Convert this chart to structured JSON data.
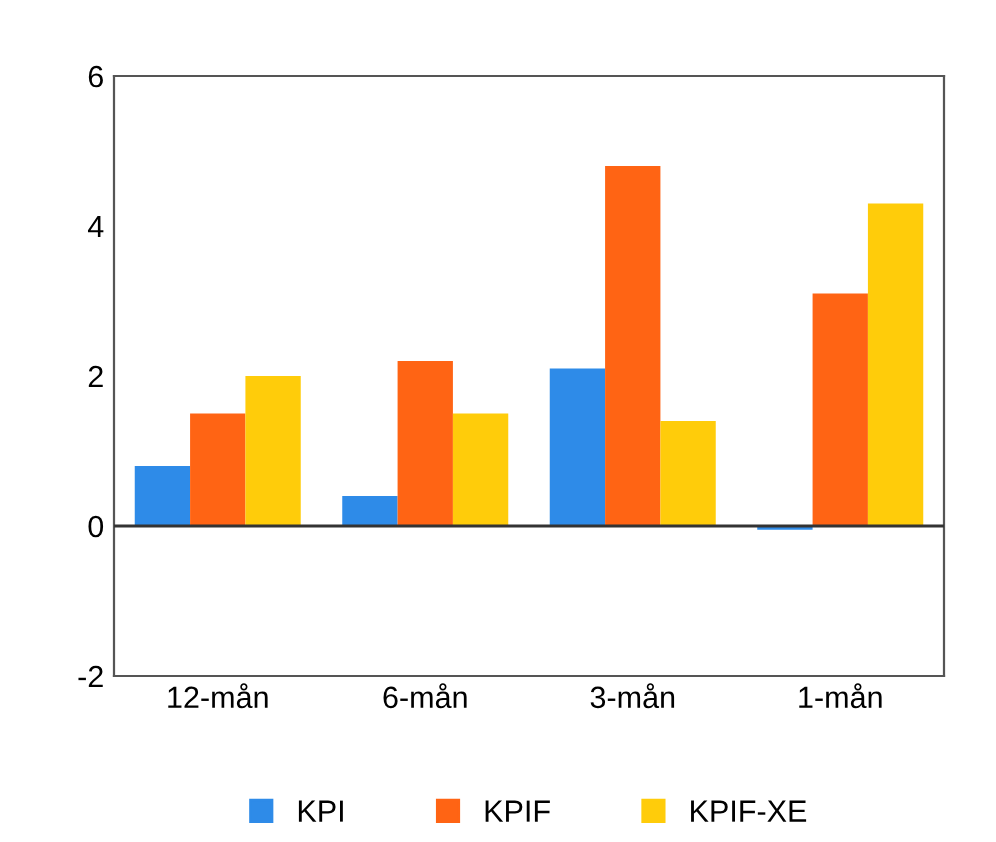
{
  "chart_data": {
    "type": "bar",
    "categories": [
      "12-mån",
      "6-mån",
      "3-mån",
      "1-mån"
    ],
    "series": [
      {
        "name": "KPI",
        "color": "#2e8be8",
        "values": [
          0.8,
          0.4,
          2.1,
          -0.05
        ]
      },
      {
        "name": "KPIF",
        "color": "#ff6414",
        "values": [
          1.5,
          2.2,
          4.8,
          3.1
        ]
      },
      {
        "name": "KPIF-XE",
        "color": "#ffcc0a",
        "values": [
          2.0,
          1.5,
          1.4,
          4.3
        ]
      }
    ],
    "ref_lines": [
      {
        "axis": "y",
        "value": 0,
        "color": "#333333"
      }
    ],
    "ylim": [
      -2,
      6
    ],
    "yticks": [
      -2,
      0,
      2,
      4,
      6
    ],
    "grid": false,
    "legend": "bottom"
  }
}
